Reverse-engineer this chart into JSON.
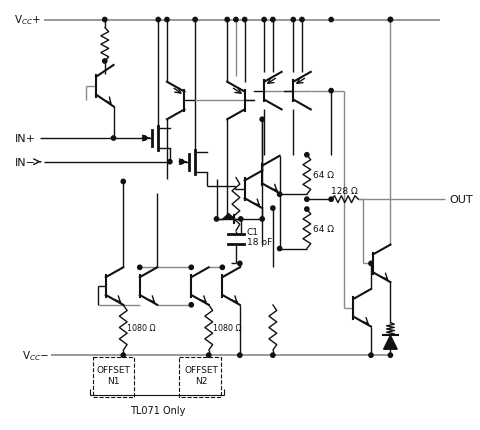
{
  "bg_color": "#ffffff",
  "blk": "#111111",
  "gry": "#888888",
  "fig_width": 4.8,
  "fig_height": 4.31,
  "dpi": 100,
  "vcc_plus": "V$_{CC}$+",
  "vcc_minus": "V$_{CC}$−",
  "in_plus": "IN+",
  "in_minus": "IN−",
  "out_label": "OUT",
  "c1_label": "C1",
  "c1_val": "18 pF",
  "r1080a": "1080 Ω",
  "r1080b": "1080 Ω",
  "r64a": "64 Ω",
  "r64b": "64 Ω",
  "r128": "128 Ω",
  "offset_n1_a": "OFFSET",
  "offset_n1_b": "N1",
  "offset_n2_a": "OFFSET",
  "offset_n2_b": "N2",
  "tl071": "TL071 Only"
}
